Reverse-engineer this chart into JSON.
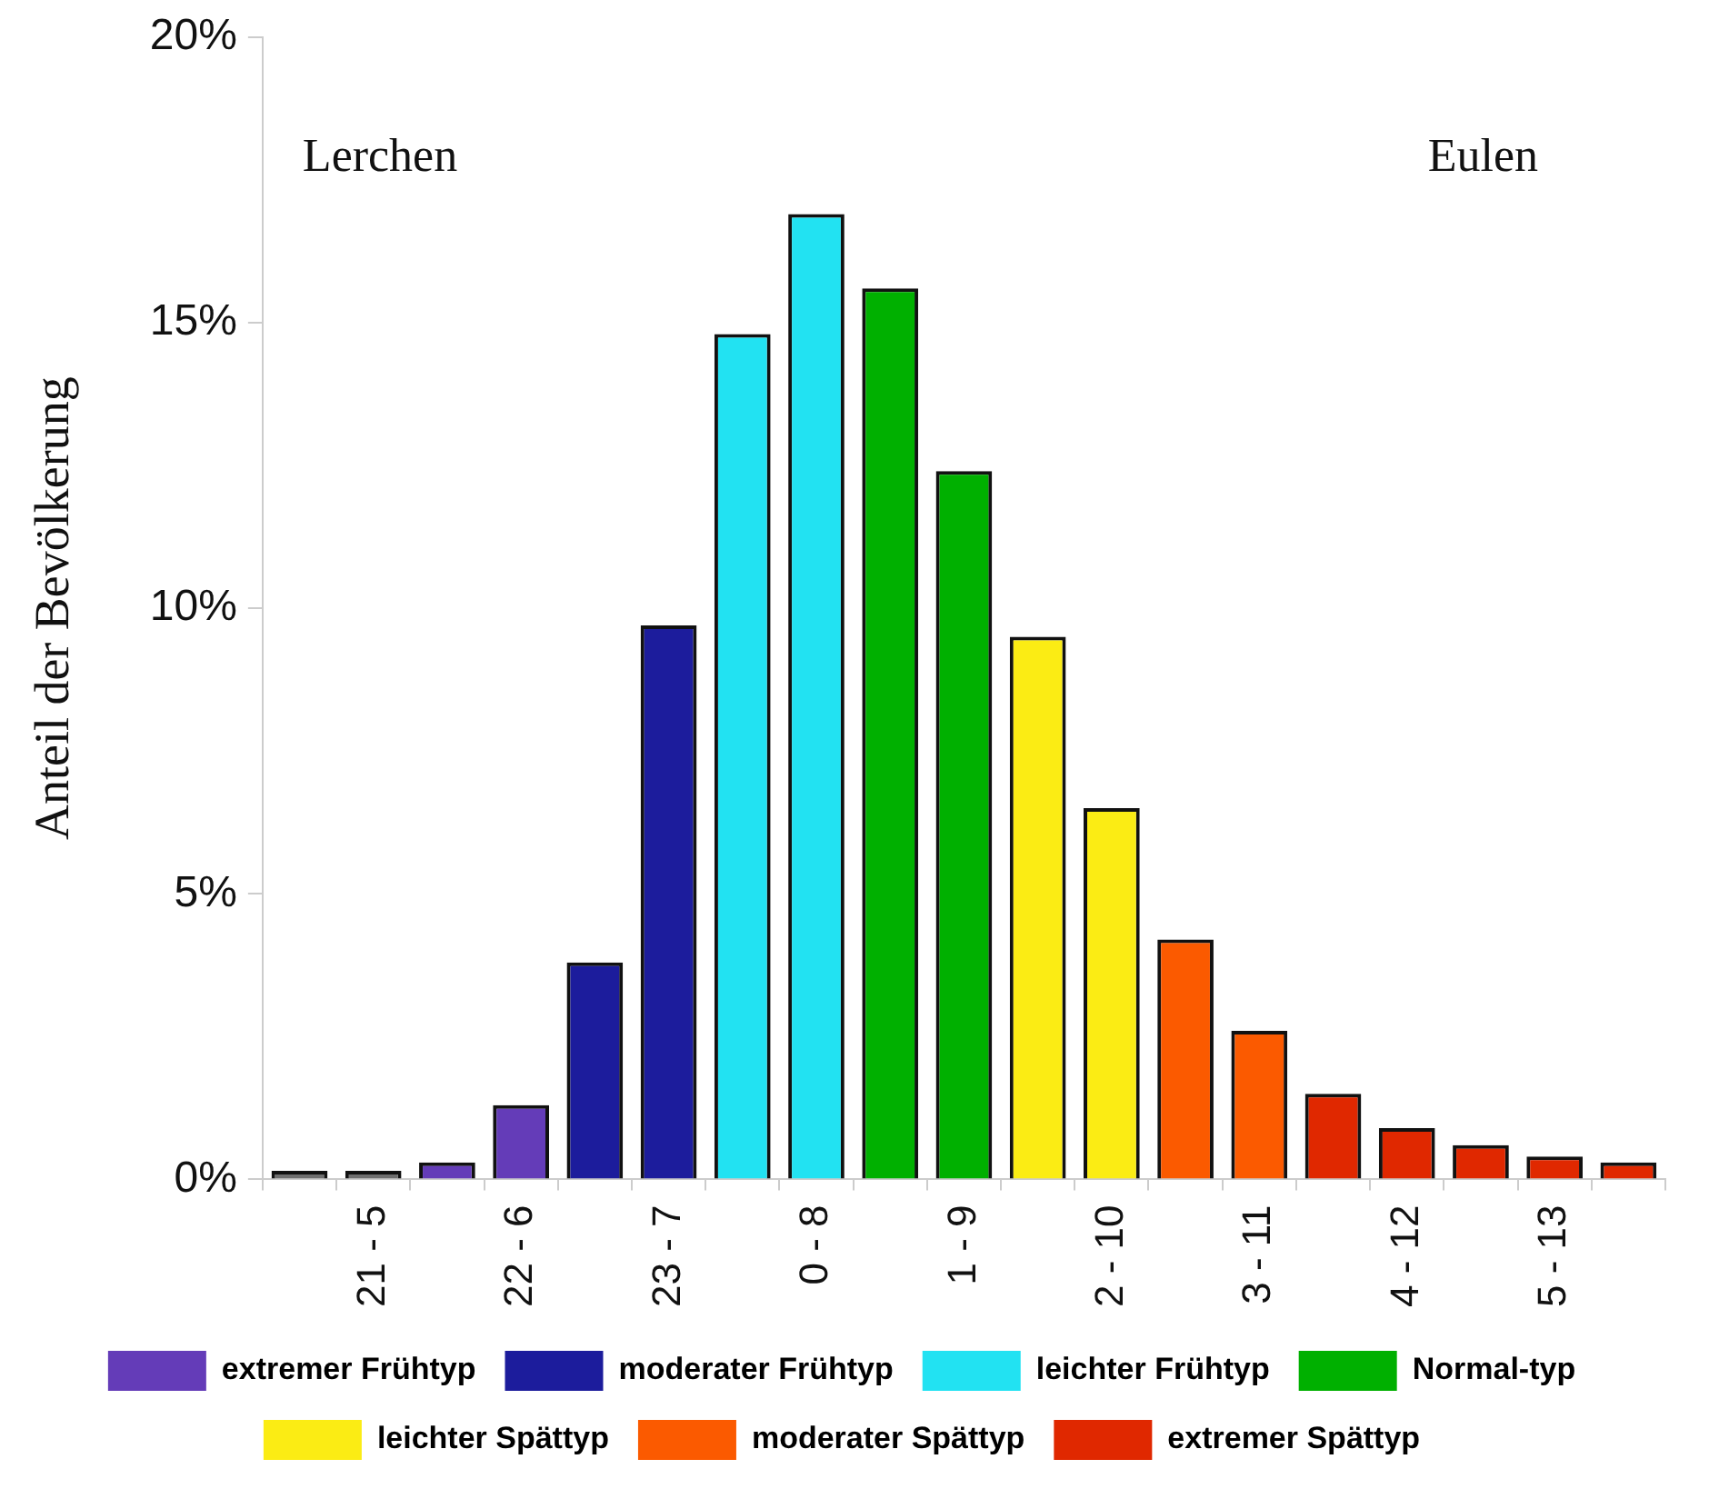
{
  "chart_data": {
    "type": "bar",
    "ylabel": "Anteil der Bevölkerung",
    "categories": [
      null,
      "21 - 5",
      null,
      "22 - 6",
      null,
      "23 - 7",
      null,
      "0 - 8",
      null,
      "1 - 9",
      null,
      "2 - 10",
      null,
      "3 - 11",
      null,
      "4 - 12",
      null,
      "5 - 13",
      null
    ],
    "series": [
      {
        "color": "#6e6e6e",
        "values": [
          0.15,
          0.15,
          null,
          null,
          null,
          null,
          null,
          null,
          null,
          null,
          null,
          null,
          null,
          null,
          null,
          null,
          null,
          null,
          null
        ]
      },
      {
        "name": "extremer Frühtyp",
        "color": "#643cb8",
        "values": [
          null,
          null,
          0.3,
          1.3,
          null,
          null,
          null,
          null,
          null,
          null,
          null,
          null,
          null,
          null,
          null,
          null,
          null,
          null,
          null
        ]
      },
      {
        "name": "moderater Frühtyp",
        "color": "#1c1c9c",
        "values": [
          null,
          null,
          null,
          null,
          3.8,
          9.7,
          null,
          null,
          null,
          null,
          null,
          null,
          null,
          null,
          null,
          null,
          null,
          null,
          null
        ]
      },
      {
        "name": "leichter Frühtyp",
        "color": "#22e2f2",
        "values": [
          null,
          null,
          null,
          null,
          null,
          null,
          14.8,
          16.9,
          null,
          null,
          null,
          null,
          null,
          null,
          null,
          null,
          null,
          null,
          null
        ]
      },
      {
        "name": "Normal-typ",
        "color": "#00b000",
        "values": [
          null,
          null,
          null,
          null,
          null,
          null,
          null,
          null,
          15.6,
          12.4,
          null,
          null,
          null,
          null,
          null,
          null,
          null,
          null,
          null
        ]
      },
      {
        "name": "leichter Spättyp",
        "color": "#fbec14",
        "values": [
          null,
          null,
          null,
          null,
          null,
          null,
          null,
          null,
          null,
          null,
          9.5,
          6.5,
          null,
          null,
          null,
          null,
          null,
          null,
          null
        ]
      },
      {
        "name": "moderater Spättyp",
        "color": "#fb5a00",
        "values": [
          null,
          null,
          null,
          null,
          null,
          null,
          null,
          null,
          null,
          null,
          null,
          null,
          4.2,
          2.6,
          null,
          null,
          null,
          null,
          null
        ]
      },
      {
        "name": "extremer Spättyp",
        "color": "#e02800",
        "values": [
          null,
          null,
          null,
          null,
          null,
          null,
          null,
          null,
          null,
          null,
          null,
          null,
          null,
          null,
          1.5,
          0.9,
          0.6,
          0.4,
          0.3
        ]
      }
    ],
    "stacked": true,
    "ylim": [
      0,
      20
    ],
    "yticks": [
      {
        "value": 0,
        "label": "0%"
      },
      {
        "value": 5,
        "label": "5%"
      },
      {
        "value": 10,
        "label": "10%"
      },
      {
        "value": 15,
        "label": "15%"
      },
      {
        "value": 20,
        "label": "20%"
      }
    ],
    "grid": false,
    "legend": "bottom",
    "annotations": [
      "Lerchen",
      "Eulen"
    ]
  }
}
